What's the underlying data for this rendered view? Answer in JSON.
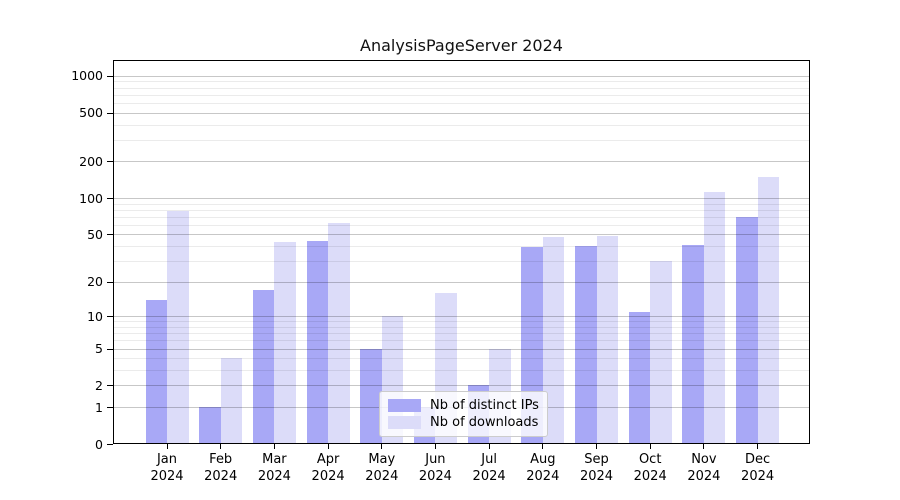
{
  "chart_data": {
    "type": "bar",
    "title": "AnalysisPageServer 2024",
    "year_label": "2024",
    "categories": [
      "Jan",
      "Feb",
      "Mar",
      "Apr",
      "May",
      "Jun",
      "Jul",
      "Aug",
      "Sep",
      "Oct",
      "Nov",
      "Dec"
    ],
    "series": [
      {
        "name": "Nb of distinct IPs",
        "color": "#a8a8f6",
        "values": [
          14,
          1,
          17,
          44,
          5,
          1,
          2,
          39,
          40,
          11,
          41,
          70
        ]
      },
      {
        "name": "Nb of downloads",
        "color": "#dcdcf9",
        "values": [
          78,
          4,
          43,
          62,
          10,
          16,
          5,
          48,
          49,
          30,
          112,
          150
        ]
      }
    ],
    "xlabel": "",
    "ylabel": "",
    "y_scale": "log1p",
    "y_major_ticks": [
      0,
      1,
      2,
      5,
      10,
      20,
      50,
      100,
      200,
      500,
      1000
    ],
    "y_minor_ticks": [
      3,
      4,
      6,
      7,
      8,
      9,
      30,
      40,
      60,
      70,
      80,
      90,
      300,
      400,
      600,
      700,
      800,
      900
    ],
    "ylim": [
      0,
      1320
    ],
    "grid": "horizontal",
    "legend_position": "lower center",
    "colors": {
      "grid_major": "rgba(0,0,0,0.22)",
      "grid_minor": "rgba(0,0,0,0.08)",
      "axis": "#000000",
      "background": "#ffffff"
    }
  }
}
